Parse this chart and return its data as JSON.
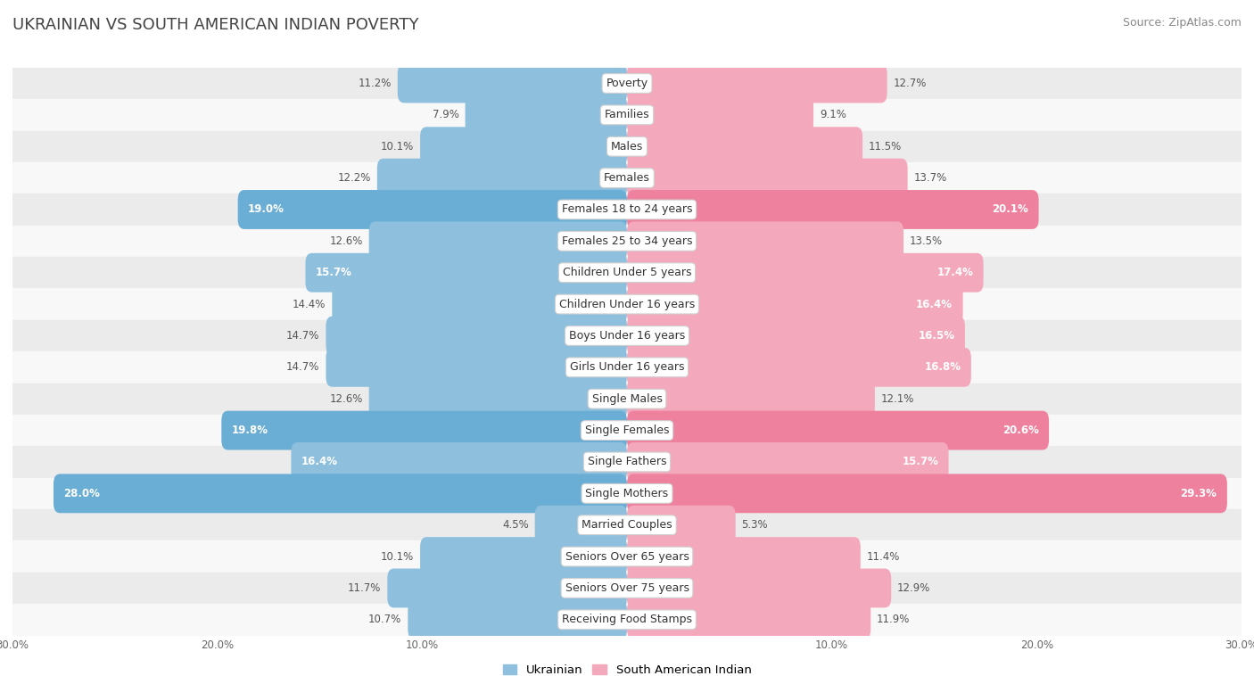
{
  "title": "UKRAINIAN VS SOUTH AMERICAN INDIAN POVERTY",
  "source": "Source: ZipAtlas.com",
  "categories": [
    "Poverty",
    "Families",
    "Males",
    "Females",
    "Females 18 to 24 years",
    "Females 25 to 34 years",
    "Children Under 5 years",
    "Children Under 16 years",
    "Boys Under 16 years",
    "Girls Under 16 years",
    "Single Males",
    "Single Females",
    "Single Fathers",
    "Single Mothers",
    "Married Couples",
    "Seniors Over 65 years",
    "Seniors Over 75 years",
    "Receiving Food Stamps"
  ],
  "ukrainian": [
    11.2,
    7.9,
    10.1,
    12.2,
    19.0,
    12.6,
    15.7,
    14.4,
    14.7,
    14.7,
    12.6,
    19.8,
    16.4,
    28.0,
    4.5,
    10.1,
    11.7,
    10.7
  ],
  "south_american": [
    12.7,
    9.1,
    11.5,
    13.7,
    20.1,
    13.5,
    17.4,
    16.4,
    16.5,
    16.8,
    12.1,
    20.6,
    15.7,
    29.3,
    5.3,
    11.4,
    12.9,
    11.9
  ],
  "ukrainian_color": "#8ec0de",
  "south_american_color": "#f4a8bc",
  "ukrainian_color_highlight": "#6aadd5",
  "south_american_color_highlight": "#ee829e",
  "row_bg_odd": "#ebebeb",
  "row_bg_even": "#f8f8f8",
  "axis_max": 30.0,
  "label_fontsize": 9.0,
  "title_fontsize": 13,
  "source_fontsize": 9,
  "value_fontsize": 8.5
}
